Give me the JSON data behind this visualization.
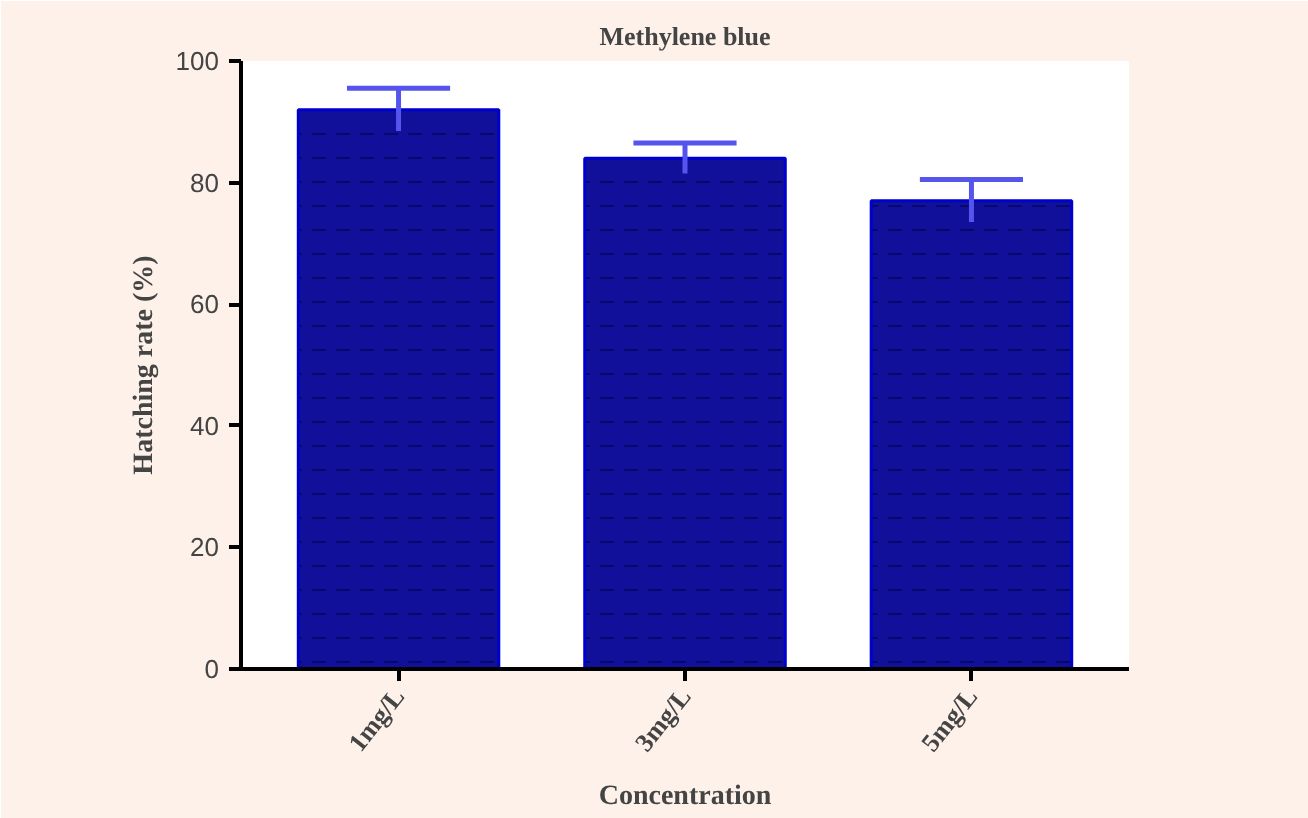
{
  "chart_data": {
    "type": "bar",
    "title": "Methylene blue",
    "xlabel": "Concentration",
    "ylabel": "Hatching rate (%)",
    "categories": [
      "1mg/L",
      "3mg/L",
      "5mg/L"
    ],
    "values": [
      92,
      84,
      77
    ],
    "errors": [
      3.5,
      2.5,
      3.5
    ],
    "color": "#10109a",
    "ylim": [
      0,
      100
    ],
    "yticks": [
      0,
      20,
      40,
      60,
      80,
      100
    ],
    "grid": false
  }
}
